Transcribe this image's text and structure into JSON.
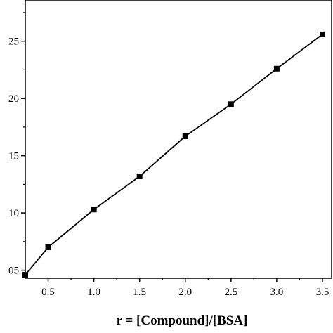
{
  "chart_data": {
    "type": "line",
    "xlabel": "r = [Compound]/[BSA]",
    "ylabel": "",
    "xlim": [
      0.25,
      3.6
    ],
    "ylim": [
      4.3,
      28.6
    ],
    "x_ticks": [
      0.5,
      1.0,
      1.5,
      2.0,
      2.5,
      3.0,
      3.5
    ],
    "x_tick_labels": [
      "0.5",
      "1.0",
      "1.5",
      "2.0",
      "2.5",
      "3.0",
      "3.5"
    ],
    "y_ticks": [
      5,
      10,
      15,
      20,
      25
    ],
    "y_tick_labels": [
      "05",
      "10",
      "15",
      "20",
      "25"
    ],
    "grid": false,
    "marker": "square",
    "colors": {
      "line": "#000000",
      "marker": "#000000",
      "axes": "#000000"
    },
    "series": [
      {
        "x": [
          0.25,
          0.5,
          1.0,
          1.5,
          2.0,
          2.5,
          3.0,
          3.5
        ],
        "y": [
          4.6,
          7.0,
          10.3,
          13.2,
          16.7,
          19.5,
          22.6,
          25.6
        ]
      }
    ]
  }
}
